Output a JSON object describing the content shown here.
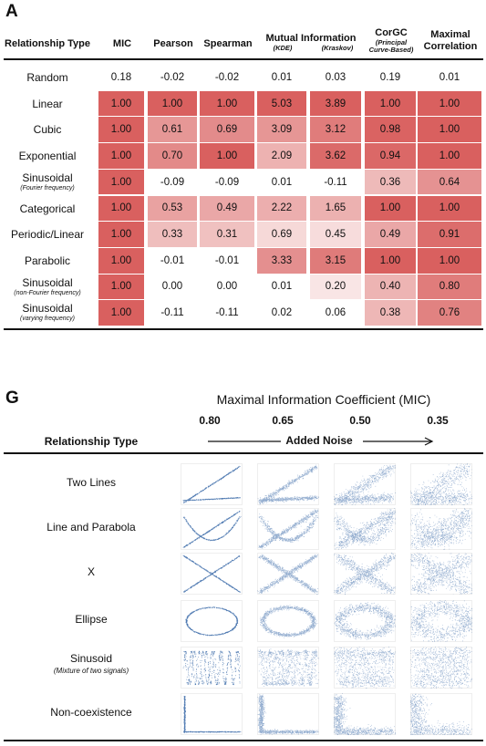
{
  "panel_a": {
    "letter": "A",
    "headers": {
      "relationship_type": "Relationship Type",
      "mic": "MIC",
      "pearson": "Pearson",
      "spearman": "Spearman",
      "mutual_information": "Mutual Information",
      "kde": "(KDE)",
      "kraskov": "(Kraskov)",
      "corgc": "CorGC",
      "corgc_sub1": "(Principal",
      "corgc_sub2": "Curve-Based)",
      "maximal": "Maximal",
      "correlation": "Correlation"
    },
    "rows": [
      {
        "label": "Random",
        "sub": "",
        "values": [
          "0.18",
          "-0.02",
          "-0.02",
          "0.01",
          "0.03",
          "0.19",
          "0.01"
        ]
      },
      {
        "label": "Linear",
        "sub": "",
        "values": [
          "1.00",
          "1.00",
          "1.00",
          "5.03",
          "3.89",
          "1.00",
          "1.00"
        ]
      },
      {
        "label": "Cubic",
        "sub": "",
        "values": [
          "1.00",
          "0.61",
          "0.69",
          "3.09",
          "3.12",
          "0.98",
          "1.00"
        ]
      },
      {
        "label": "Exponential",
        "sub": "",
        "values": [
          "1.00",
          "0.70",
          "1.00",
          "2.09",
          "3.62",
          "0.94",
          "1.00"
        ]
      },
      {
        "label": "Sinusoidal",
        "sub": "(Fourier frequency)",
        "values": [
          "1.00",
          "-0.09",
          "-0.09",
          "0.01",
          "-0.11",
          "0.36",
          "0.64"
        ]
      },
      {
        "label": "Categorical",
        "sub": "",
        "values": [
          "1.00",
          "0.53",
          "0.49",
          "2.22",
          "1.65",
          "1.00",
          "1.00"
        ]
      },
      {
        "label": "Periodic/Linear",
        "sub": "",
        "values": [
          "1.00",
          "0.33",
          "0.31",
          "0.69",
          "0.45",
          "0.49",
          "0.91"
        ]
      },
      {
        "label": "Parabolic",
        "sub": "",
        "values": [
          "1.00",
          "-0.01",
          "-0.01",
          "3.33",
          "3.15",
          "1.00",
          "1.00"
        ]
      },
      {
        "label": "Sinusoidal",
        "sub": "(non-Fourier frequency)",
        "values": [
          "1.00",
          "0.00",
          "0.00",
          "0.01",
          "0.20",
          "0.40",
          "0.80"
        ]
      },
      {
        "label": "Sinusoidal",
        "sub": "(varying frequency)",
        "values": [
          "1.00",
          "-0.11",
          "-0.11",
          "0.02",
          "0.06",
          "0.38",
          "0.76"
        ]
      }
    ],
    "colors": {
      "strong": "#d9605f",
      "faint": "#fdf0f0"
    }
  },
  "panel_g": {
    "letter": "G",
    "title": "Maximal Information Coefficient (MIC)",
    "mic_levels": [
      "0.80",
      "0.65",
      "0.50",
      "0.35"
    ],
    "relationship_type": "Relationship Type",
    "added_noise": "Added Noise",
    "rows": [
      {
        "label": "Two Lines",
        "sub": "",
        "shape": "two-lines"
      },
      {
        "label": "Line and Parabola",
        "sub": "",
        "shape": "line-parabola"
      },
      {
        "label": "X",
        "sub": "",
        "shape": "x"
      },
      {
        "label": "Ellipse",
        "sub": "",
        "shape": "ellipse"
      },
      {
        "label": "Sinusoid",
        "sub": "(Mixture of two signals)",
        "shape": "sinusoid"
      },
      {
        "label": "Non-coexistence",
        "sub": "",
        "shape": "non-coexistence"
      }
    ],
    "colors": {
      "points": "#3b6aa8"
    }
  }
}
